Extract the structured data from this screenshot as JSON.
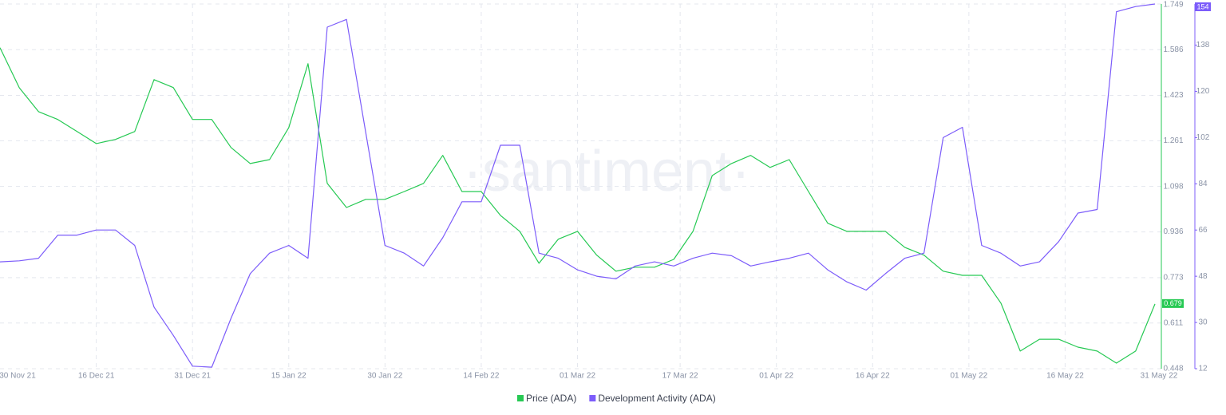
{
  "chart_data": {
    "type": "line",
    "watermark": "·santiment·",
    "x": [
      "2021-12-01",
      "2021-12-04",
      "2021-12-07",
      "2021-12-10",
      "2021-12-13",
      "2021-12-16",
      "2021-12-19",
      "2021-12-22",
      "2021-12-25",
      "2021-12-28",
      "2021-12-31",
      "2022-01-03",
      "2022-01-06",
      "2022-01-09",
      "2022-01-12",
      "2022-01-15",
      "2022-01-18",
      "2022-01-21",
      "2022-01-24",
      "2022-01-27",
      "2022-01-30",
      "2022-02-02",
      "2022-02-05",
      "2022-02-08",
      "2022-02-11",
      "2022-02-14",
      "2022-02-17",
      "2022-02-20",
      "2022-02-23",
      "2022-02-26",
      "2022-03-01",
      "2022-03-04",
      "2022-03-07",
      "2022-03-10",
      "2022-03-13",
      "2022-03-16",
      "2022-03-19",
      "2022-03-22",
      "2022-03-25",
      "2022-03-28",
      "2022-03-31",
      "2022-04-03",
      "2022-04-06",
      "2022-04-09",
      "2022-04-12",
      "2022-04-15",
      "2022-04-18",
      "2022-04-21",
      "2022-04-24",
      "2022-04-27",
      "2022-04-30",
      "2022-05-03",
      "2022-05-06",
      "2022-05-09",
      "2022-05-12",
      "2022-05-15",
      "2022-05-18",
      "2022-05-21",
      "2022-05-24",
      "2022-05-27",
      "2022-05-30"
    ],
    "xlim": [
      "2021-11-30",
      "2022-05-31"
    ],
    "xticks": [
      {
        "value": "2021-11-30",
        "label": "30 Nov 21"
      },
      {
        "value": "2021-12-16",
        "label": "16 Dec 21"
      },
      {
        "value": "2021-12-31",
        "label": "31 Dec 21"
      },
      {
        "value": "2022-01-15",
        "label": "15 Jan 22"
      },
      {
        "value": "2022-01-30",
        "label": "30 Jan 22"
      },
      {
        "value": "2022-02-14",
        "label": "14 Feb 22"
      },
      {
        "value": "2022-03-01",
        "label": "01 Mar 22"
      },
      {
        "value": "2022-03-17",
        "label": "17 Mar 22"
      },
      {
        "value": "2022-04-01",
        "label": "01 Apr 22"
      },
      {
        "value": "2022-04-16",
        "label": "16 Apr 22"
      },
      {
        "value": "2022-05-01",
        "label": "01 May 22"
      },
      {
        "value": "2022-05-16",
        "label": "16 May 22"
      },
      {
        "value": "2022-05-31",
        "label": "31 May 22"
      }
    ],
    "ylim": [
      0.448,
      1.749
    ],
    "yticks": [
      0.448,
      0.611,
      0.773,
      0.936,
      1.098,
      1.261,
      1.423,
      1.586,
      1.749
    ],
    "y2lim": [
      12,
      154
    ],
    "y2ticks": [
      12,
      30,
      48,
      66,
      84,
      102,
      120,
      138
    ],
    "grid": true,
    "legend": "bottom",
    "series": [
      {
        "name": "Price (ADA)",
        "color": "#26c953",
        "values": [
          1.593,
          1.45,
          1.365,
          1.337,
          1.294,
          1.251,
          1.266,
          1.294,
          1.479,
          1.451,
          1.337,
          1.337,
          1.237,
          1.18,
          1.194,
          1.308,
          1.536,
          1.109,
          1.023,
          1.052,
          1.052,
          1.08,
          1.109,
          1.209,
          1.08,
          1.08,
          0.995,
          0.938,
          0.824,
          0.91,
          0.938,
          0.853,
          0.796,
          0.81,
          0.81,
          0.838,
          0.938,
          1.137,
          1.18,
          1.209,
          1.166,
          1.194,
          1.08,
          0.967,
          0.938,
          0.938,
          0.938,
          0.881,
          0.853,
          0.796,
          0.781,
          0.781,
          0.682,
          0.511,
          0.553,
          0.553,
          0.525,
          0.511,
          0.468,
          0.511,
          0.679
        ]
      },
      {
        "name": "Development Activity (ADA)",
        "color": "#7c5cfa",
        "axis": "y2",
        "values": [
          53.6,
          54,
          55,
          64,
          64,
          66,
          66,
          60,
          36,
          25,
          13,
          12.6,
          31.6,
          49,
          57,
          60,
          55,
          145,
          148,
          104,
          60,
          57,
          52,
          63,
          77,
          77,
          99,
          99,
          57,
          55,
          50.5,
          48,
          47,
          52,
          53.6,
          52,
          55,
          57,
          56,
          52,
          53.6,
          55,
          57,
          50.5,
          45.8,
          42.6,
          49,
          55,
          57,
          102,
          106,
          60,
          57,
          52,
          53.6,
          61.5,
          72.6,
          74,
          151,
          153,
          154
        ]
      }
    ]
  }
}
